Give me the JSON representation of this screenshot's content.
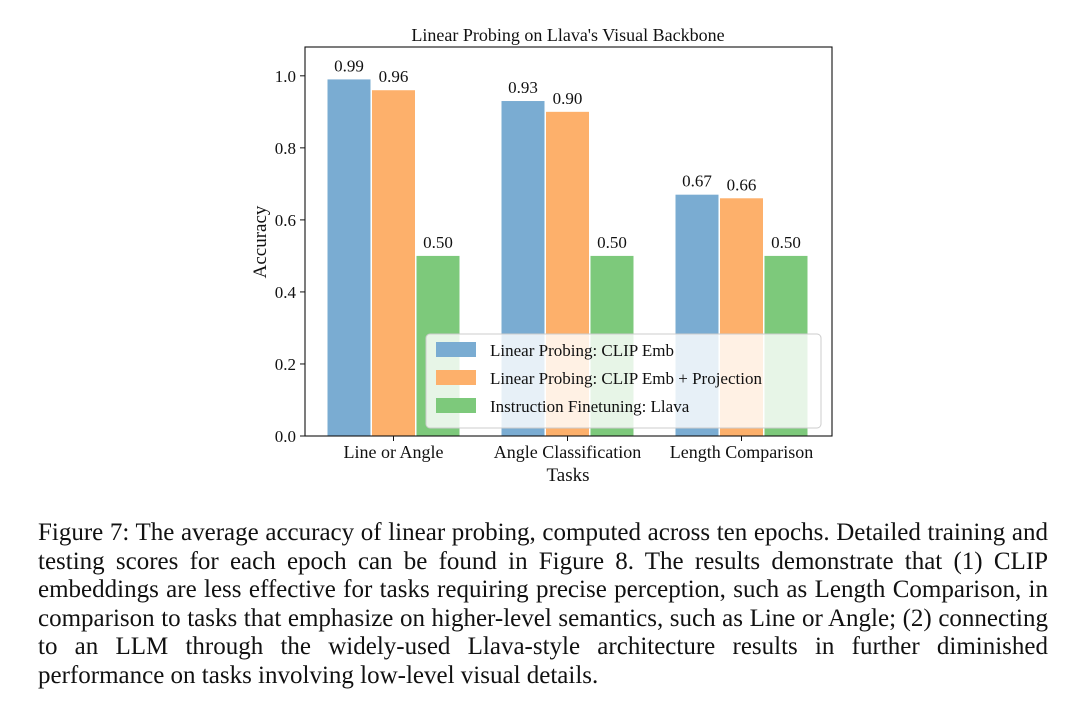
{
  "chart_data": {
    "type": "bar",
    "title": "Linear Probing on Llava's Visual Backbone",
    "xlabel": "Tasks",
    "ylabel": "Accuracy",
    "categories": [
      "Line or Angle",
      "Angle Classification",
      "Length Comparison"
    ],
    "ylim": [
      0,
      1.08
    ],
    "yticks": [
      "0.0",
      "0.2",
      "0.4",
      "0.6",
      "0.8",
      "1.0"
    ],
    "grid": false,
    "legend_position": "lower-right",
    "series": [
      {
        "name": "Linear Probing: CLIP Emb",
        "color": "#7aacd2",
        "values": [
          0.99,
          0.93,
          0.67
        ],
        "labels": [
          "0.99",
          "0.93",
          "0.67"
        ]
      },
      {
        "name": "Linear Probing: CLIP Emb + Projection",
        "color": "#fdb06b",
        "values": [
          0.96,
          0.9,
          0.66
        ],
        "labels": [
          "0.96",
          "0.90",
          "0.66"
        ]
      },
      {
        "name": "Instruction Finetuning: Llava",
        "color": "#7dc97b",
        "values": [
          0.5,
          0.5,
          0.5
        ],
        "labels": [
          "0.50",
          "0.50",
          "0.50"
        ]
      }
    ]
  },
  "caption": "Figure 7: The average accuracy of linear probing, computed across ten epochs. Detailed training and testing scores for each epoch can be found in Figure 8. The results demonstrate that (1) CLIP embeddings are less effective for tasks requiring precise perception, such as Length Comparison, in comparison to tasks that emphasize on higher-level semantics, such as Line or Angle; (2) connecting to an LLM through the widely-used Llava-style architecture results in further diminished performance on tasks involving low-level visual details."
}
